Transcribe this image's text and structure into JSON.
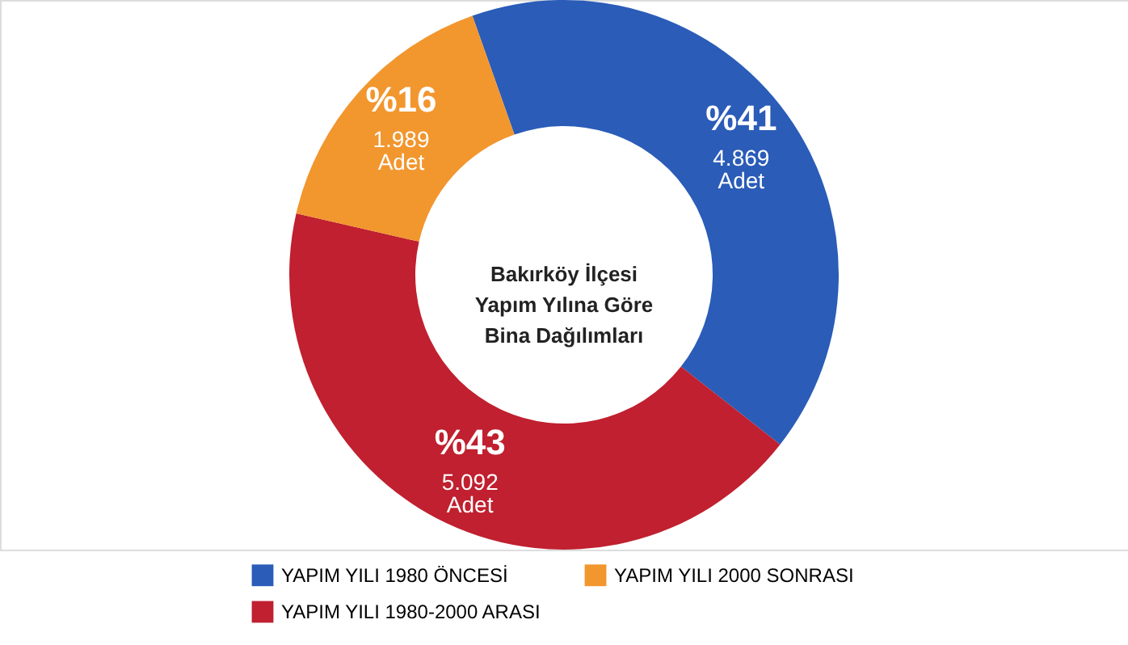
{
  "chart_data": {
    "type": "donut",
    "title": "Bakırköy İlçesi\nYapım Yılına Göre\nBina Dağılımları",
    "categories": [
      "YAPIM YILI 1980 ÖNCESİ",
      "YAPIM YILI 1980-2000 ARASI",
      "YAPIM YILI 2000 SONRASI"
    ],
    "values": [
      41,
      43,
      16
    ],
    "value_labels": [
      "%41\n4.869\nAdet",
      "%43\n5.092\nAdet",
      "%16\n1.989\nAdet"
    ],
    "colors": [
      "#2a5cb8",
      "#c0202f",
      "#f2962e"
    ],
    "legend": "bottom"
  }
}
